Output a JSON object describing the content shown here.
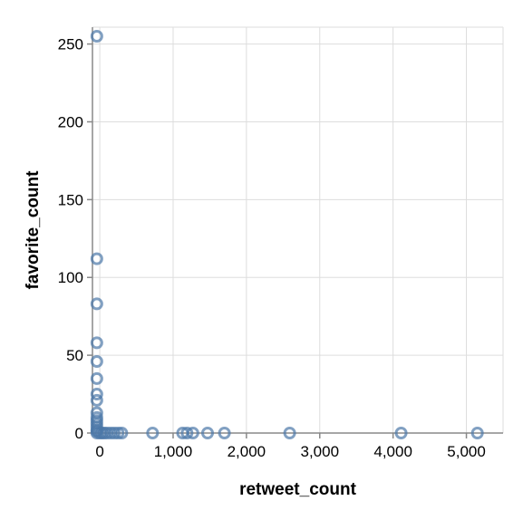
{
  "chart_data": {
    "type": "scatter",
    "title": "",
    "xlabel": "retweet_count",
    "ylabel": "favorite_count",
    "xlim": [
      -100,
      5500
    ],
    "ylim": [
      0,
      255
    ],
    "xticks": [
      0,
      1000,
      2000,
      3000,
      4000,
      5000
    ],
    "yticks": [
      0,
      50,
      100,
      150,
      200,
      250
    ],
    "x_tick_labels": [
      "0",
      "1,000",
      "2,000",
      "3,000",
      "4,000",
      "5,000"
    ],
    "y_tick_labels": [
      "0",
      "50",
      "100",
      "150",
      "200",
      "250"
    ],
    "grid": true,
    "point_color": "#4c78a8",
    "points": [
      {
        "x": -40,
        "y": 255
      },
      {
        "x": -40,
        "y": 112
      },
      {
        "x": -40,
        "y": 83
      },
      {
        "x": -40,
        "y": 58
      },
      {
        "x": -40,
        "y": 46
      },
      {
        "x": -40,
        "y": 35
      },
      {
        "x": -40,
        "y": 25
      },
      {
        "x": -40,
        "y": 21
      },
      {
        "x": -40,
        "y": 13
      },
      {
        "x": -40,
        "y": 10
      },
      {
        "x": -40,
        "y": 8
      },
      {
        "x": -40,
        "y": 6
      },
      {
        "x": -40,
        "y": 4
      },
      {
        "x": -40,
        "y": 2
      },
      {
        "x": -40,
        "y": 1
      },
      {
        "x": -40,
        "y": 0
      },
      {
        "x": 0,
        "y": 0
      },
      {
        "x": 30,
        "y": 0
      },
      {
        "x": 60,
        "y": 0
      },
      {
        "x": 100,
        "y": 0
      },
      {
        "x": 150,
        "y": 0
      },
      {
        "x": 200,
        "y": 0
      },
      {
        "x": 250,
        "y": 0
      },
      {
        "x": 300,
        "y": 0
      },
      {
        "x": 720,
        "y": 0
      },
      {
        "x": 1130,
        "y": 0
      },
      {
        "x": 1190,
        "y": 0
      },
      {
        "x": 1270,
        "y": 0
      },
      {
        "x": 1470,
        "y": 0
      },
      {
        "x": 1700,
        "y": 0
      },
      {
        "x": 2590,
        "y": 0
      },
      {
        "x": 4110,
        "y": 0
      },
      {
        "x": 5150,
        "y": 0
      }
    ]
  }
}
